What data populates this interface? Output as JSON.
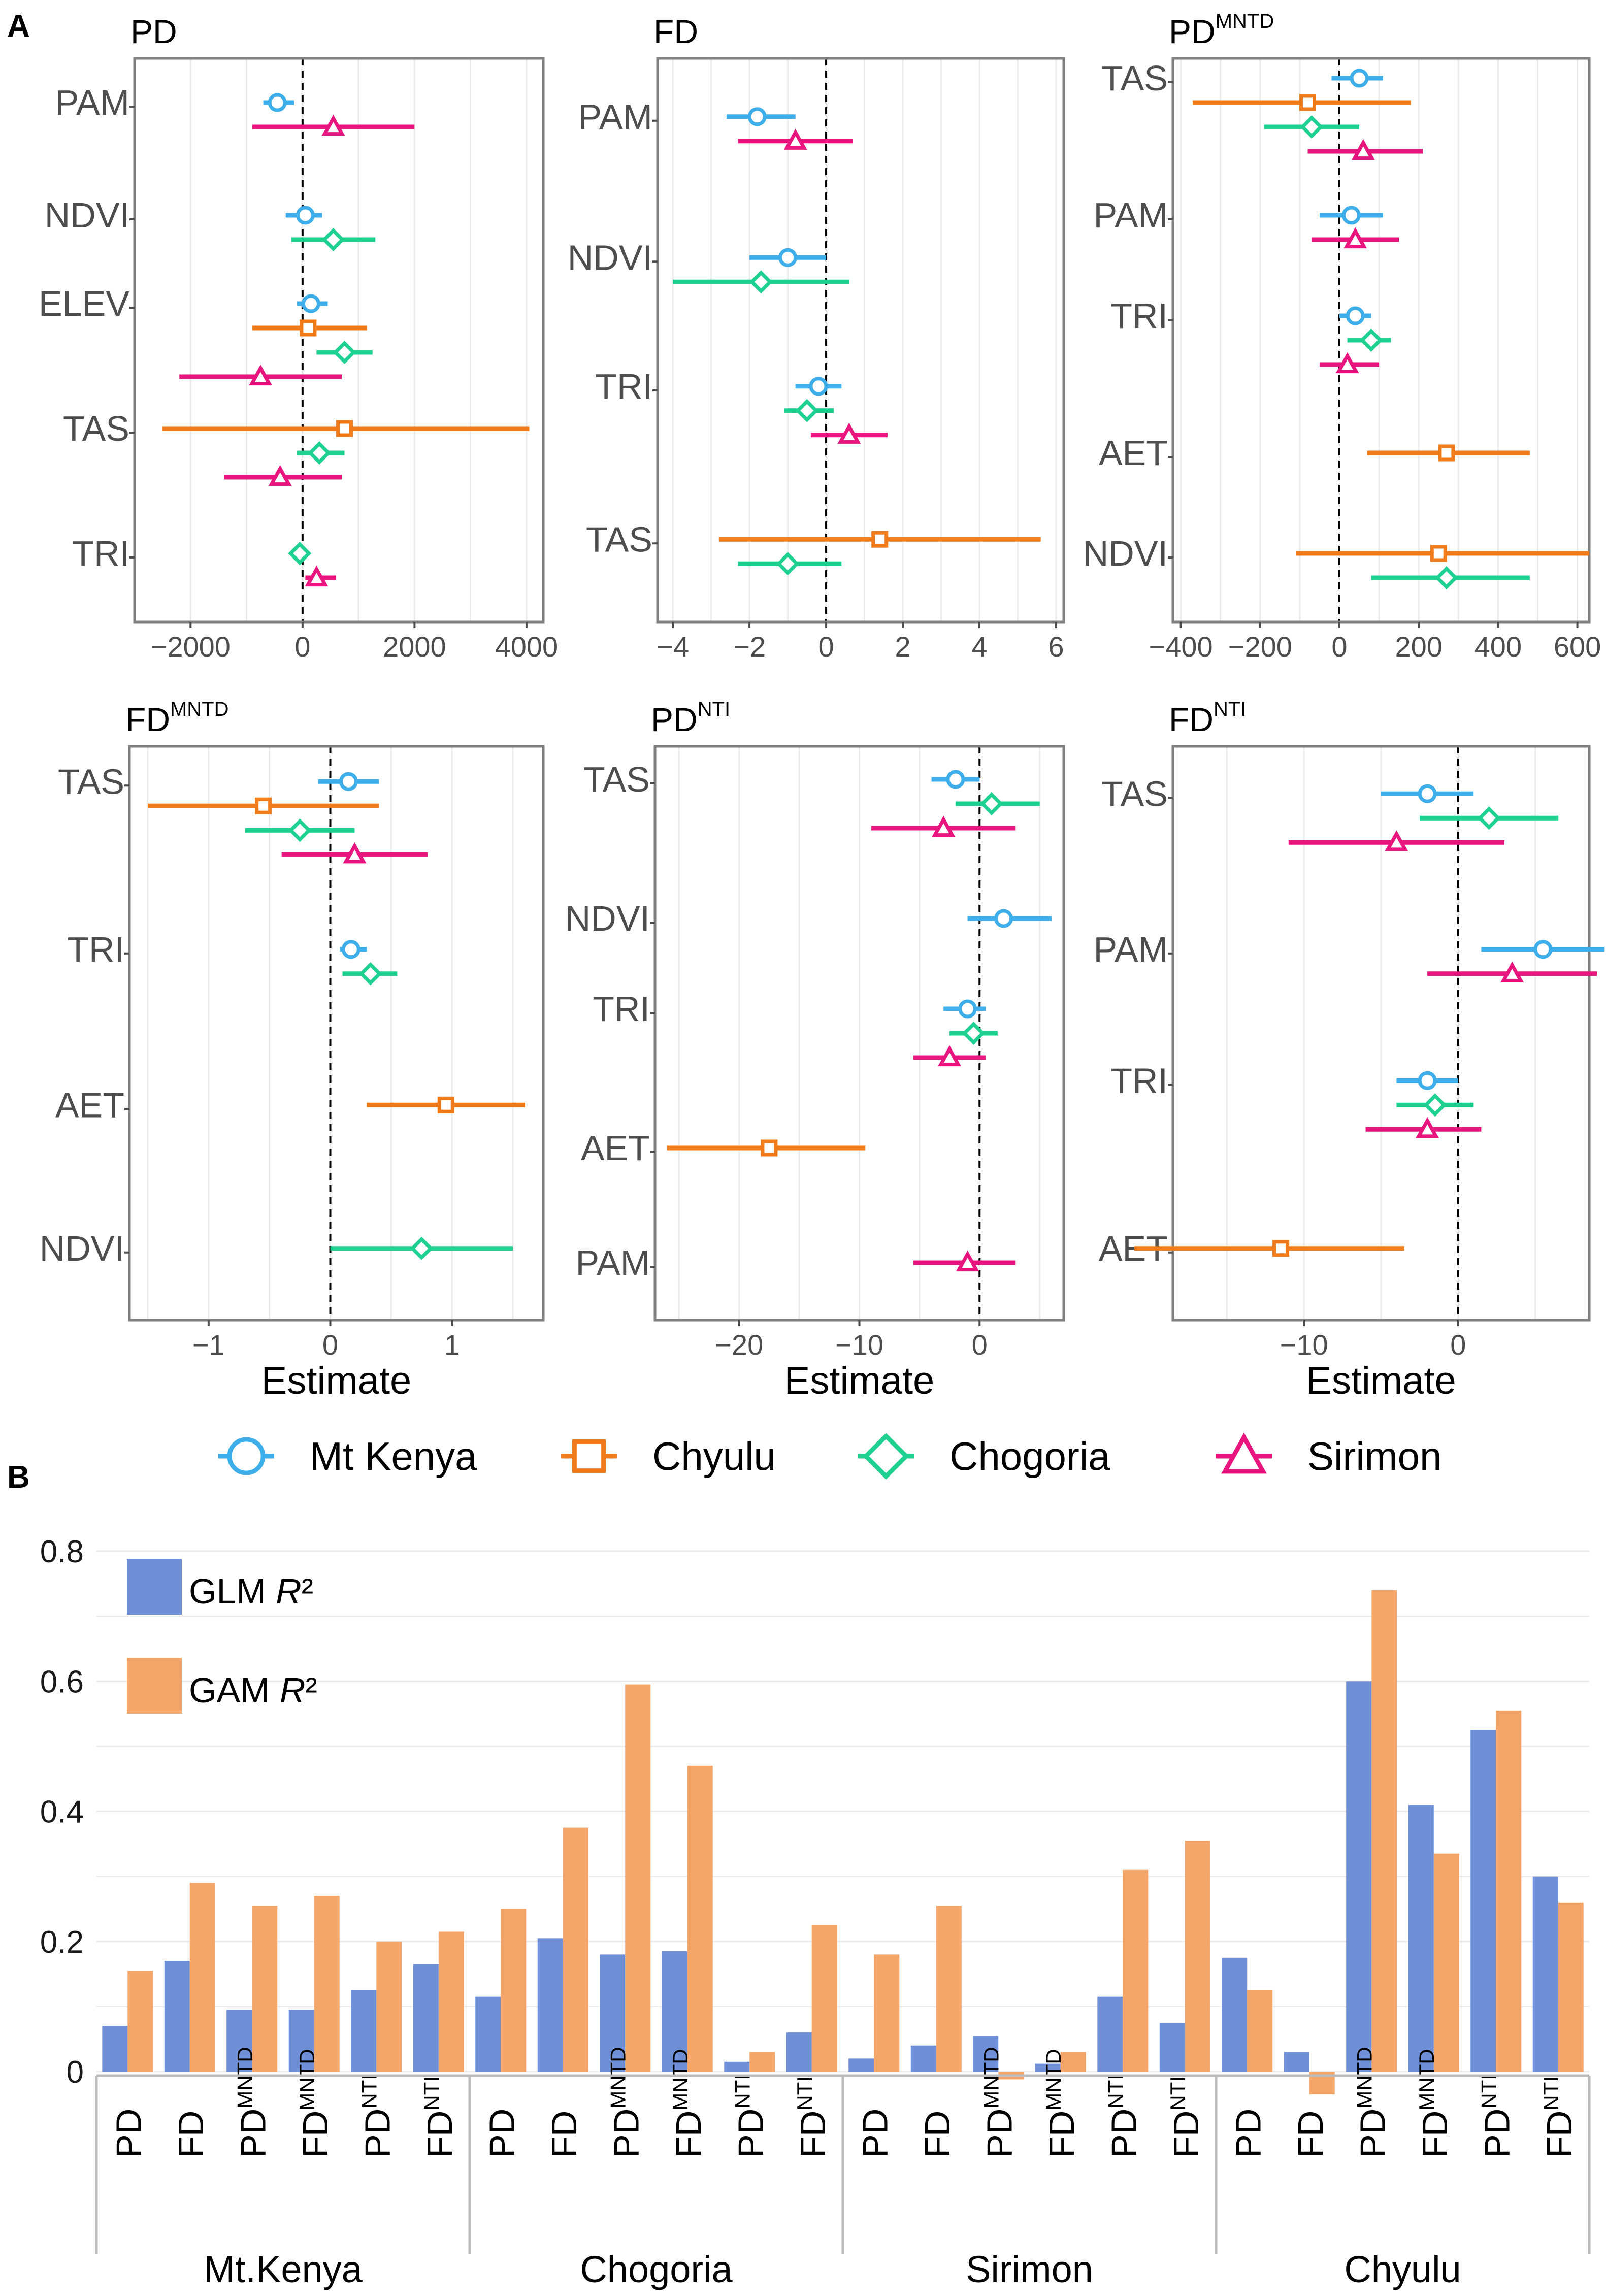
{
  "colors": {
    "mt_kenya": "#3daee9",
    "chyulu": "#f07b1a",
    "chogoria": "#1fd191",
    "sirimon": "#e8157f",
    "glm": "#6f8fd6",
    "gam": "#f3a56a",
    "panel_border": "#7f7f7f",
    "grid": "#ebebeb"
  },
  "panel_labels": {
    "a": "A",
    "b": "B"
  },
  "legend": {
    "series": [
      {
        "key": "mt_kenya",
        "label": "Mt Kenya",
        "shape": "circle-icon"
      },
      {
        "key": "chyulu",
        "label": "Chyulu",
        "shape": "square-icon"
      },
      {
        "key": "chogoria",
        "label": "Chogoria",
        "shape": "diamond-icon"
      },
      {
        "key": "sirimon",
        "label": "Sirimon",
        "shape": "triangle-icon"
      }
    ]
  },
  "chart_data": [
    {
      "type": "forest",
      "title": "PD",
      "title_sup": "",
      "xlabel": "",
      "xlim": [
        -3000,
        4300
      ],
      "xticks": [
        -2000,
        0,
        2000,
        4000
      ],
      "rows": [
        {
          "label": "PAM",
          "points": [
            {
              "series": "mt_kenya",
              "est": -450,
              "lo": -700,
              "hi": -150
            },
            {
              "series": "sirimon",
              "est": 550,
              "lo": -900,
              "hi": 2000
            }
          ]
        },
        {
          "label": "NDVI",
          "points": [
            {
              "series": "mt_kenya",
              "est": 50,
              "lo": -300,
              "hi": 350
            },
            {
              "series": "chogoria",
              "est": 550,
              "lo": -200,
              "hi": 1300
            }
          ]
        },
        {
          "label": "ELEV",
          "points": [
            {
              "series": "mt_kenya",
              "est": 150,
              "lo": -100,
              "hi": 450
            },
            {
              "series": "chyulu",
              "est": 100,
              "lo": -900,
              "hi": 1150
            },
            {
              "series": "chogoria",
              "est": 750,
              "lo": 250,
              "hi": 1250
            },
            {
              "series": "sirimon",
              "est": -750,
              "lo": -2200,
              "hi": 700
            }
          ]
        },
        {
          "label": "TAS",
          "points": [
            {
              "series": "chyulu",
              "est": 750,
              "lo": -2500,
              "hi": 4050
            },
            {
              "series": "chogoria",
              "est": 300,
              "lo": -100,
              "hi": 750
            },
            {
              "series": "sirimon",
              "est": -400,
              "lo": -1400,
              "hi": 700
            }
          ]
        },
        {
          "label": "TRI",
          "points": [
            {
              "series": "chogoria",
              "est": -50,
              "lo": -150,
              "hi": 50
            },
            {
              "series": "sirimon",
              "est": 250,
              "lo": 50,
              "hi": 600
            }
          ]
        }
      ]
    },
    {
      "type": "forest",
      "title": "FD",
      "title_sup": "",
      "xlabel": "",
      "xlim": [
        -4.4,
        6.2
      ],
      "xticks": [
        -4,
        -2,
        0,
        2,
        4,
        6
      ],
      "rows": [
        {
          "label": "PAM",
          "points": [
            {
              "series": "mt_kenya",
              "est": -1.8,
              "lo": -2.6,
              "hi": -0.8
            },
            {
              "series": "sirimon",
              "est": -0.8,
              "lo": -2.3,
              "hi": 0.7
            }
          ]
        },
        {
          "label": "NDVI",
          "points": [
            {
              "series": "mt_kenya",
              "est": -1.0,
              "lo": -2.0,
              "hi": 0.0
            },
            {
              "series": "chogoria",
              "est": -1.7,
              "lo": -4.0,
              "hi": 0.6
            }
          ]
        },
        {
          "label": "TRI",
          "points": [
            {
              "series": "mt_kenya",
              "est": -0.2,
              "lo": -0.8,
              "hi": 0.4
            },
            {
              "series": "chogoria",
              "est": -0.5,
              "lo": -1.1,
              "hi": 0.2
            },
            {
              "series": "sirimon",
              "est": 0.6,
              "lo": -0.4,
              "hi": 1.6
            }
          ]
        },
        {
          "label": "TAS",
          "points": [
            {
              "series": "chyulu",
              "est": 1.4,
              "lo": -2.8,
              "hi": 5.6
            },
            {
              "series": "chogoria",
              "est": -1.0,
              "lo": -2.3,
              "hi": 0.4
            }
          ]
        }
      ]
    },
    {
      "type": "forest",
      "title": "PD",
      "title_sup": "MNTD",
      "xlabel": "",
      "xlim": [
        -420,
        630
      ],
      "xticks": [
        -400,
        -200,
        0,
        200,
        400,
        600
      ],
      "rows": [
        {
          "label": "TAS",
          "points": [
            {
              "series": "mt_kenya",
              "est": 50,
              "lo": -20,
              "hi": 110
            },
            {
              "series": "chyulu",
              "est": -80,
              "lo": -370,
              "hi": 180
            },
            {
              "series": "chogoria",
              "est": -70,
              "lo": -190,
              "hi": 50
            },
            {
              "series": "sirimon",
              "est": 60,
              "lo": -80,
              "hi": 210
            }
          ]
        },
        {
          "label": "PAM",
          "points": [
            {
              "series": "mt_kenya",
              "est": 30,
              "lo": -50,
              "hi": 110
            },
            {
              "series": "sirimon",
              "est": 40,
              "lo": -70,
              "hi": 150
            }
          ]
        },
        {
          "label": "TRI",
          "points": [
            {
              "series": "mt_kenya",
              "est": 40,
              "lo": 0,
              "hi": 80
            },
            {
              "series": "chogoria",
              "est": 80,
              "lo": 20,
              "hi": 130
            },
            {
              "series": "sirimon",
              "est": 20,
              "lo": -50,
              "hi": 100
            }
          ]
        },
        {
          "label": "AET",
          "points": [
            {
              "series": "chyulu",
              "est": 270,
              "lo": 70,
              "hi": 480
            }
          ]
        },
        {
          "label": "NDVI",
          "points": [
            {
              "series": "chyulu",
              "est": 250,
              "lo": -110,
              "hi": 630
            },
            {
              "series": "chogoria",
              "est": 270,
              "lo": 80,
              "hi": 480
            }
          ]
        }
      ]
    },
    {
      "type": "forest",
      "title": "FD",
      "title_sup": "MNTD",
      "xlabel": "Estimate",
      "xlim": [
        -1.65,
        1.75
      ],
      "xticks": [
        -1,
        0,
        1
      ],
      "rows": [
        {
          "label": "TAS",
          "points": [
            {
              "series": "mt_kenya",
              "est": 0.15,
              "lo": -0.1,
              "hi": 0.4
            },
            {
              "series": "chyulu",
              "est": -0.55,
              "lo": -1.5,
              "hi": 0.4
            },
            {
              "series": "chogoria",
              "est": -0.25,
              "lo": -0.7,
              "hi": 0.2
            },
            {
              "series": "sirimon",
              "est": 0.2,
              "lo": -0.4,
              "hi": 0.8
            }
          ]
        },
        {
          "label": "TRI",
          "points": [
            {
              "series": "mt_kenya",
              "est": 0.17,
              "lo": 0.08,
              "hi": 0.3
            },
            {
              "series": "chogoria",
              "est": 0.33,
              "lo": 0.1,
              "hi": 0.55
            }
          ]
        },
        {
          "label": "AET",
          "points": [
            {
              "series": "chyulu",
              "est": 0.95,
              "lo": 0.3,
              "hi": 1.6
            }
          ]
        },
        {
          "label": "NDVI",
          "points": [
            {
              "series": "chogoria",
              "est": 0.75,
              "lo": 0.0,
              "hi": 1.5
            }
          ]
        }
      ]
    },
    {
      "type": "forest",
      "title": "PD",
      "title_sup": "NTI",
      "xlabel": "Estimate",
      "xlim": [
        -27,
        7
      ],
      "xticks": [
        -20,
        -10,
        0
      ],
      "rows": [
        {
          "label": "TAS",
          "points": [
            {
              "series": "mt_kenya",
              "est": -2,
              "lo": -4,
              "hi": 0
            },
            {
              "series": "chogoria",
              "est": 1,
              "lo": -2,
              "hi": 5
            },
            {
              "series": "sirimon",
              "est": -3,
              "lo": -9,
              "hi": 3
            }
          ]
        },
        {
          "label": "NDVI",
          "points": [
            {
              "series": "mt_kenya",
              "est": 2,
              "lo": -1,
              "hi": 6
            }
          ]
        },
        {
          "label": "TRI",
          "points": [
            {
              "series": "mt_kenya",
              "est": -1,
              "lo": -3,
              "hi": 0.5
            },
            {
              "series": "chogoria",
              "est": -0.5,
              "lo": -2.5,
              "hi": 1.5
            },
            {
              "series": "sirimon",
              "est": -2.5,
              "lo": -5.5,
              "hi": 0.5
            }
          ]
        },
        {
          "label": "AET",
          "points": [
            {
              "series": "chyulu",
              "est": -17.5,
              "lo": -26,
              "hi": -9.5
            }
          ]
        },
        {
          "label": "PAM",
          "points": [
            {
              "series": "sirimon",
              "est": -1,
              "lo": -5.5,
              "hi": 3
            }
          ]
        }
      ]
    },
    {
      "type": "forest",
      "title": "FD",
      "title_sup": "NTI",
      "xlabel": "Estimate",
      "xlim": [
        -18.5,
        8.5
      ],
      "xticks": [
        -10,
        0
      ],
      "rows": [
        {
          "label": "TAS",
          "points": [
            {
              "series": "mt_kenya",
              "est": -2,
              "lo": -5,
              "hi": 1
            },
            {
              "series": "chogoria",
              "est": 2,
              "lo": -2.5,
              "hi": 6.5
            },
            {
              "series": "sirimon",
              "est": -4,
              "lo": -11,
              "hi": 3
            }
          ]
        },
        {
          "label": "PAM",
          "points": [
            {
              "series": "mt_kenya",
              "est": 5.5,
              "lo": 1.5,
              "hi": 9.5
            },
            {
              "series": "sirimon",
              "est": 3.5,
              "lo": -2,
              "hi": 9
            }
          ]
        },
        {
          "label": "TRI",
          "points": [
            {
              "series": "mt_kenya",
              "est": -2,
              "lo": -4,
              "hi": 0
            },
            {
              "series": "chogoria",
              "est": -1.5,
              "lo": -4,
              "hi": 1
            },
            {
              "series": "sirimon",
              "est": -2,
              "lo": -6,
              "hi": 1.5
            }
          ]
        },
        {
          "label": "AET",
          "points": [
            {
              "series": "chyulu",
              "est": -11.5,
              "lo": -21,
              "hi": -3.5
            }
          ]
        }
      ]
    },
    {
      "type": "bar",
      "title": "",
      "ylim": [
        -0.05,
        0.8
      ],
      "yticks": [
        0,
        0.2,
        0.4,
        0.6,
        0.8
      ],
      "ytick_labels": [
        "0",
        "0.2",
        "0.4",
        "0.6",
        "0.8"
      ],
      "legend": [
        {
          "key": "glm",
          "label": "GLM ",
          "label_italic": "R",
          "label_tail": "²"
        },
        {
          "key": "gam",
          "label": "GAM ",
          "label_italic": "R",
          "label_tail": "²"
        }
      ],
      "categories": [
        {
          "base": "PD",
          "sup": ""
        },
        {
          "base": "FD",
          "sup": ""
        },
        {
          "base": "PD",
          "sup": "MNTD"
        },
        {
          "base": "FD",
          "sup": "MNTD"
        },
        {
          "base": "PD",
          "sup": "NTI"
        },
        {
          "base": "FD",
          "sup": "NTI"
        }
      ],
      "groups": [
        {
          "name": "Mt.Kenya",
          "glm": [
            0.07,
            0.17,
            0.095,
            0.095,
            0.125,
            0.165
          ],
          "gam": [
            0.155,
            0.29,
            0.255,
            0.27,
            0.2,
            0.215
          ]
        },
        {
          "name": "Chogoria",
          "glm": [
            0.115,
            0.205,
            0.18,
            0.185,
            0.015,
            0.06
          ],
          "gam": [
            0.25,
            0.375,
            0.595,
            0.47,
            0.03,
            0.225
          ]
        },
        {
          "name": "Sirimon",
          "glm": [
            0.02,
            0.04,
            0.055,
            0.012,
            0.115,
            0.075
          ],
          "gam": [
            0.18,
            0.255,
            -0.012,
            0.03,
            0.31,
            0.355
          ]
        },
        {
          "name": "Chyulu",
          "glm": [
            0.175,
            0.03,
            0.6,
            0.41,
            0.525,
            0.3
          ],
          "gam": [
            0.125,
            -0.035,
            0.74,
            0.335,
            0.555,
            0.26
          ]
        }
      ]
    }
  ]
}
